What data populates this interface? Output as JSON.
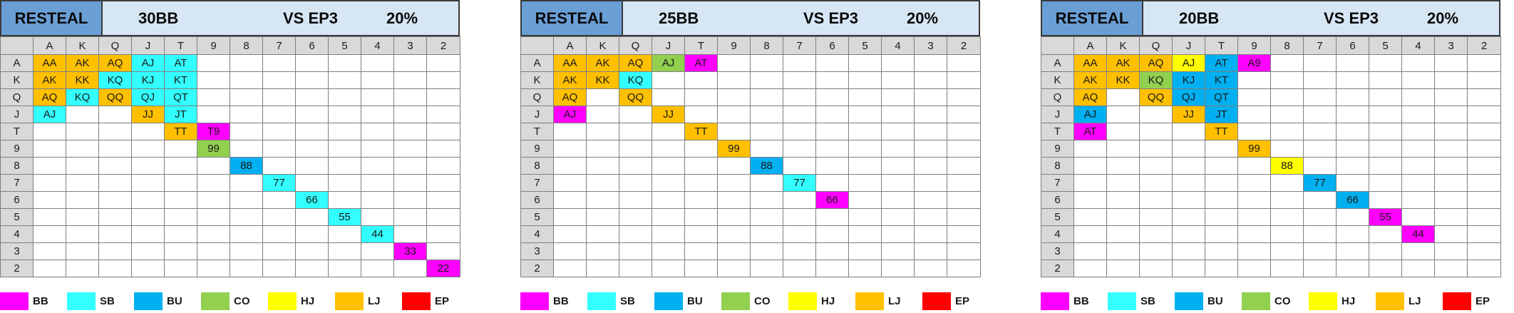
{
  "ranks": [
    "A",
    "K",
    "Q",
    "J",
    "T",
    "9",
    "8",
    "7",
    "6",
    "5",
    "4",
    "3",
    "2"
  ],
  "colors": {
    "BB": "#ff00ff",
    "SB": "#33ffff",
    "BU": "#00b0f0",
    "CO": "#92d050",
    "HJ": "#ffff00",
    "LJ": "#ffc000",
    "EP": "#ff0000"
  },
  "legend": [
    {
      "key": "BB",
      "label": "BB"
    },
    {
      "key": "SB",
      "label": "SB"
    },
    {
      "key": "BU",
      "label": "BU"
    },
    {
      "key": "CO",
      "label": "CO"
    },
    {
      "key": "HJ",
      "label": "HJ"
    },
    {
      "key": "LJ",
      "label": "LJ"
    },
    {
      "key": "EP",
      "label": "EP"
    }
  ],
  "panels": [
    {
      "title": "RESTEAL",
      "stack": "30BB",
      "vs": "VS EP3",
      "percent": "20%",
      "cells": [
        {
          "r": 0,
          "c": 0,
          "text": "AA",
          "pos": "LJ"
        },
        {
          "r": 0,
          "c": 1,
          "text": "AK",
          "pos": "LJ"
        },
        {
          "r": 0,
          "c": 2,
          "text": "AQ",
          "pos": "LJ"
        },
        {
          "r": 0,
          "c": 3,
          "text": "AJ",
          "pos": "SB"
        },
        {
          "r": 0,
          "c": 4,
          "text": "AT",
          "pos": "SB"
        },
        {
          "r": 1,
          "c": 0,
          "text": "AK",
          "pos": "LJ"
        },
        {
          "r": 1,
          "c": 1,
          "text": "KK",
          "pos": "LJ"
        },
        {
          "r": 1,
          "c": 2,
          "text": "KQ",
          "pos": "SB"
        },
        {
          "r": 1,
          "c": 3,
          "text": "KJ",
          "pos": "SB"
        },
        {
          "r": 1,
          "c": 4,
          "text": "KT",
          "pos": "SB"
        },
        {
          "r": 2,
          "c": 0,
          "text": "AQ",
          "pos": "LJ"
        },
        {
          "r": 2,
          "c": 1,
          "text": "KQ",
          "pos": "SB"
        },
        {
          "r": 2,
          "c": 2,
          "text": "QQ",
          "pos": "LJ"
        },
        {
          "r": 2,
          "c": 3,
          "text": "QJ",
          "pos": "SB"
        },
        {
          "r": 2,
          "c": 4,
          "text": "QT",
          "pos": "SB"
        },
        {
          "r": 3,
          "c": 0,
          "text": "AJ",
          "pos": "SB"
        },
        {
          "r": 3,
          "c": 3,
          "text": "JJ",
          "pos": "LJ"
        },
        {
          "r": 3,
          "c": 4,
          "text": "JT",
          "pos": "SB"
        },
        {
          "r": 4,
          "c": 4,
          "text": "TT",
          "pos": "LJ"
        },
        {
          "r": 4,
          "c": 5,
          "text": "T9",
          "pos": "BB"
        },
        {
          "r": 5,
          "c": 5,
          "text": "99",
          "pos": "CO"
        },
        {
          "r": 6,
          "c": 6,
          "text": "88",
          "pos": "BU"
        },
        {
          "r": 7,
          "c": 7,
          "text": "77",
          "pos": "SB"
        },
        {
          "r": 8,
          "c": 8,
          "text": "66",
          "pos": "SB"
        },
        {
          "r": 9,
          "c": 9,
          "text": "55",
          "pos": "SB"
        },
        {
          "r": 10,
          "c": 10,
          "text": "44",
          "pos": "SB"
        },
        {
          "r": 11,
          "c": 11,
          "text": "33",
          "pos": "BB"
        },
        {
          "r": 12,
          "c": 12,
          "text": "22",
          "pos": "BB"
        }
      ]
    },
    {
      "title": "RESTEAL",
      "stack": "25BB",
      "vs": "VS EP3",
      "percent": "20%",
      "cells": [
        {
          "r": 0,
          "c": 0,
          "text": "AA",
          "pos": "LJ"
        },
        {
          "r": 0,
          "c": 1,
          "text": "AK",
          "pos": "LJ"
        },
        {
          "r": 0,
          "c": 2,
          "text": "AQ",
          "pos": "LJ"
        },
        {
          "r": 0,
          "c": 3,
          "text": "AJ",
          "pos": "CO"
        },
        {
          "r": 0,
          "c": 4,
          "text": "AT",
          "pos": "BB"
        },
        {
          "r": 1,
          "c": 0,
          "text": "AK",
          "pos": "LJ"
        },
        {
          "r": 1,
          "c": 1,
          "text": "KK",
          "pos": "LJ"
        },
        {
          "r": 1,
          "c": 2,
          "text": "KQ",
          "pos": "SB"
        },
        {
          "r": 2,
          "c": 0,
          "text": "AQ",
          "pos": "LJ"
        },
        {
          "r": 2,
          "c": 2,
          "text": "QQ",
          "pos": "LJ"
        },
        {
          "r": 3,
          "c": 0,
          "text": "AJ",
          "pos": "BB"
        },
        {
          "r": 3,
          "c": 3,
          "text": "JJ",
          "pos": "LJ"
        },
        {
          "r": 4,
          "c": 4,
          "text": "TT",
          "pos": "LJ"
        },
        {
          "r": 5,
          "c": 5,
          "text": "99",
          "pos": "LJ"
        },
        {
          "r": 6,
          "c": 6,
          "text": "88",
          "pos": "BU"
        },
        {
          "r": 7,
          "c": 7,
          "text": "77",
          "pos": "SB"
        },
        {
          "r": 8,
          "c": 8,
          "text": "66",
          "pos": "BB"
        }
      ]
    },
    {
      "title": "RESTEAL",
      "stack": "20BB",
      "vs": "VS EP3",
      "percent": "20%",
      "cells": [
        {
          "r": 0,
          "c": 0,
          "text": "AA",
          "pos": "LJ"
        },
        {
          "r": 0,
          "c": 1,
          "text": "AK",
          "pos": "LJ"
        },
        {
          "r": 0,
          "c": 2,
          "text": "AQ",
          "pos": "LJ"
        },
        {
          "r": 0,
          "c": 3,
          "text": "AJ",
          "pos": "HJ"
        },
        {
          "r": 0,
          "c": 4,
          "text": "AT",
          "pos": "BU"
        },
        {
          "r": 0,
          "c": 5,
          "text": "A9",
          "pos": "BB"
        },
        {
          "r": 1,
          "c": 0,
          "text": "AK",
          "pos": "LJ"
        },
        {
          "r": 1,
          "c": 1,
          "text": "KK",
          "pos": "LJ"
        },
        {
          "r": 1,
          "c": 2,
          "text": "KQ",
          "pos": "CO"
        },
        {
          "r": 1,
          "c": 3,
          "text": "KJ",
          "pos": "BU"
        },
        {
          "r": 1,
          "c": 4,
          "text": "KT",
          "pos": "BU"
        },
        {
          "r": 2,
          "c": 0,
          "text": "AQ",
          "pos": "LJ"
        },
        {
          "r": 2,
          "c": 2,
          "text": "QQ",
          "pos": "LJ"
        },
        {
          "r": 2,
          "c": 3,
          "text": "QJ",
          "pos": "BU"
        },
        {
          "r": 2,
          "c": 4,
          "text": "QT",
          "pos": "BU"
        },
        {
          "r": 3,
          "c": 0,
          "text": "AJ",
          "pos": "BU"
        },
        {
          "r": 3,
          "c": 3,
          "text": "JJ",
          "pos": "LJ"
        },
        {
          "r": 3,
          "c": 4,
          "text": "JT",
          "pos": "BU"
        },
        {
          "r": 4,
          "c": 0,
          "text": "AT",
          "pos": "BB"
        },
        {
          "r": 4,
          "c": 4,
          "text": "TT",
          "pos": "LJ"
        },
        {
          "r": 5,
          "c": 5,
          "text": "99",
          "pos": "LJ"
        },
        {
          "r": 6,
          "c": 6,
          "text": "88",
          "pos": "HJ"
        },
        {
          "r": 7,
          "c": 7,
          "text": "77",
          "pos": "BU"
        },
        {
          "r": 8,
          "c": 8,
          "text": "66",
          "pos": "BU"
        },
        {
          "r": 9,
          "c": 9,
          "text": "55",
          "pos": "BB"
        },
        {
          "r": 10,
          "c": 10,
          "text": "44",
          "pos": "BB"
        }
      ]
    }
  ]
}
